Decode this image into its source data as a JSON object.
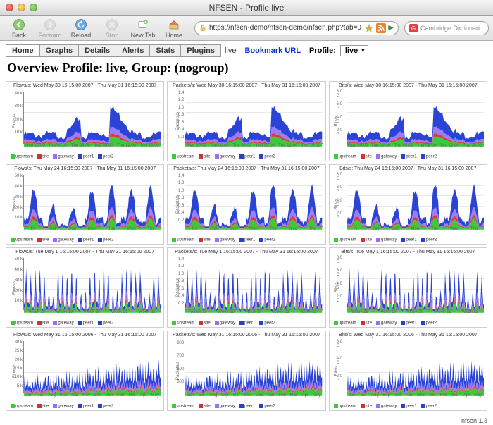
{
  "window": {
    "title": "NFSEN - Profile live"
  },
  "toolbar": {
    "back": "Back",
    "forward": "Forward",
    "reload": "Reload",
    "stop": "Stop",
    "newtab": "New Tab",
    "home": "Home",
    "url": "https://nfsen-demo/nfsen-demo/nfsen.php?tab=0",
    "search_placeholder": "Cambridge Dictionari"
  },
  "tabs": {
    "items": [
      "Home",
      "Graphs",
      "Details",
      "Alerts",
      "Stats",
      "Plugins"
    ],
    "active": 0,
    "live_label": "live",
    "bookmark_label": "Bookmark URL",
    "profile_label": "Profile:",
    "profile_value": "live"
  },
  "heading": "Overview Profile: live, Group: (nogroup)",
  "legend": {
    "items": [
      {
        "label": "upstream",
        "color": "#3cc93c"
      },
      {
        "label": "site",
        "color": "#cc3333"
      },
      {
        "label": "gateway",
        "color": "#9a6cff"
      },
      {
        "label": "peer1",
        "color": "#2b3fcc"
      },
      {
        "label": "peer2",
        "color": "#2b3fcc"
      }
    ]
  },
  "colors": {
    "upstream": "#3cc93c",
    "site": "#d93b3b",
    "gateway": "#9b7cff",
    "peer": "#2b44d6",
    "grid": "#e8e8e8",
    "border": "#cfcfcf",
    "axis": "#888888",
    "bg": "#ffffff"
  },
  "footer": "nfsen 1.3",
  "charts": [
    {
      "row": 0,
      "titles": [
        "Flows/s: Wed May 30 16:15:00 2007 - Thu May 31 16:15:00 2007",
        "Packets/s: Wed May 30 16:15:00 2007 - Thu May 31 16:15:00 2007",
        "Bits/s: Wed May 30 16:15:00 2007 - Thu May 31 16:15:00 2007"
      ],
      "ylabels": [
        "Flows/s",
        "Packets/s",
        "Bits/s"
      ],
      "yticks": [
        [
          "40 k",
          "30 k",
          "20 k",
          "10 k"
        ],
        [
          "1.4",
          "1.2",
          "1.0",
          "0.8",
          "0.6",
          "0.4",
          "0.2"
        ],
        [
          "8.0 G",
          "6.0 G",
          "4.0 G",
          "2.0 G"
        ]
      ],
      "xticks": [
        "Wed 20:00",
        "Thu 00:00",
        "Thu 04:00",
        "Thu 08:00",
        "Thu 12:00",
        "Thu 16:00"
      ],
      "pattern": "daycurve"
    },
    {
      "row": 1,
      "titles": [
        "Flows/s: Thu May 24 16:15:00 2007 - Thu May 31 16:15:00 2007",
        "Packets/s: Thu May 24 16:15:00 2007 - Thu May 31 16:15:00 2007",
        "Bits/s: Thu May 24 16:15:00 2007 - Thu May 31 16:15:00 2007"
      ],
      "ylabels": [
        "Flows/s",
        "Packets/s",
        "Bits/s"
      ],
      "yticks": [
        [
          "50 k",
          "40 k",
          "30 k",
          "20 k",
          "10 k"
        ],
        [
          "1.4",
          "1.2",
          "1.0",
          "0.8",
          "0.6",
          "0.4",
          "0.2"
        ],
        [
          "8.0 G",
          "6.0 G",
          "4.0 G",
          "2.0 G"
        ]
      ],
      "xticks": [
        "Fri",
        "Sat",
        "Sun",
        "Mon",
        "Tue",
        "Wed",
        "Thu"
      ],
      "pattern": "weekly"
    },
    {
      "row": 2,
      "titles": [
        "Flows/s: Tue May  1 16:15:00 2007 - Thu May 31 16:15:00 2007",
        "Packets/s: Tue May  1 16:15:00 2007 - Thu May 31 16:15:00 2007",
        "Bits/s: Tue May  1 16:15:00 2007 - Thu May 31 16:15:00 2007"
      ],
      "ylabels": [
        "Flows/s",
        "Packets/s",
        "Bits/s"
      ],
      "yticks": [
        [
          "50 k",
          "40 k",
          "30 k",
          "20 k",
          "10 k"
        ],
        [
          "1.4",
          "1.2",
          "1.0",
          "0.8",
          "0.6",
          "0.4",
          "0.2"
        ],
        [
          "8.0 G",
          "6.0 G",
          "4.0 G",
          "2.0 G"
        ]
      ],
      "xticks": [
        "Week 18",
        "Week 19",
        "Week 20",
        "Week 21",
        "Week 22"
      ],
      "pattern": "monthly"
    },
    {
      "row": 3,
      "titles": [
        "Flows/s: Wed May 31 16:15:00 2006 - Thu May 31 16:15:00 2007",
        "Packets/s: Wed May 31 16:15:00 2006 - Thu May 31 16:15:00 2007",
        "Bits/s: Wed May 31 16:15:00 2006 - Thu May 31 16:15:00 2007"
      ],
      "ylabels": [
        "Flows/s",
        "Packets/s",
        "Bits/s"
      ],
      "yticks": [
        [
          "30 k",
          "25 k",
          "20 k",
          "15 k",
          "10 k",
          "5 k"
        ],
        [
          "900",
          "700",
          "500",
          "300"
        ],
        [
          "6.0 G",
          "4.0 G",
          "2.0 G"
        ]
      ],
      "xticks": [
        "Jun",
        "Jul",
        "Aug",
        "Sep",
        "Oct",
        "Nov",
        "Dec",
        "Jan",
        "Feb",
        "Mar",
        "Apr",
        "May"
      ],
      "pattern": "yearly"
    }
  ]
}
